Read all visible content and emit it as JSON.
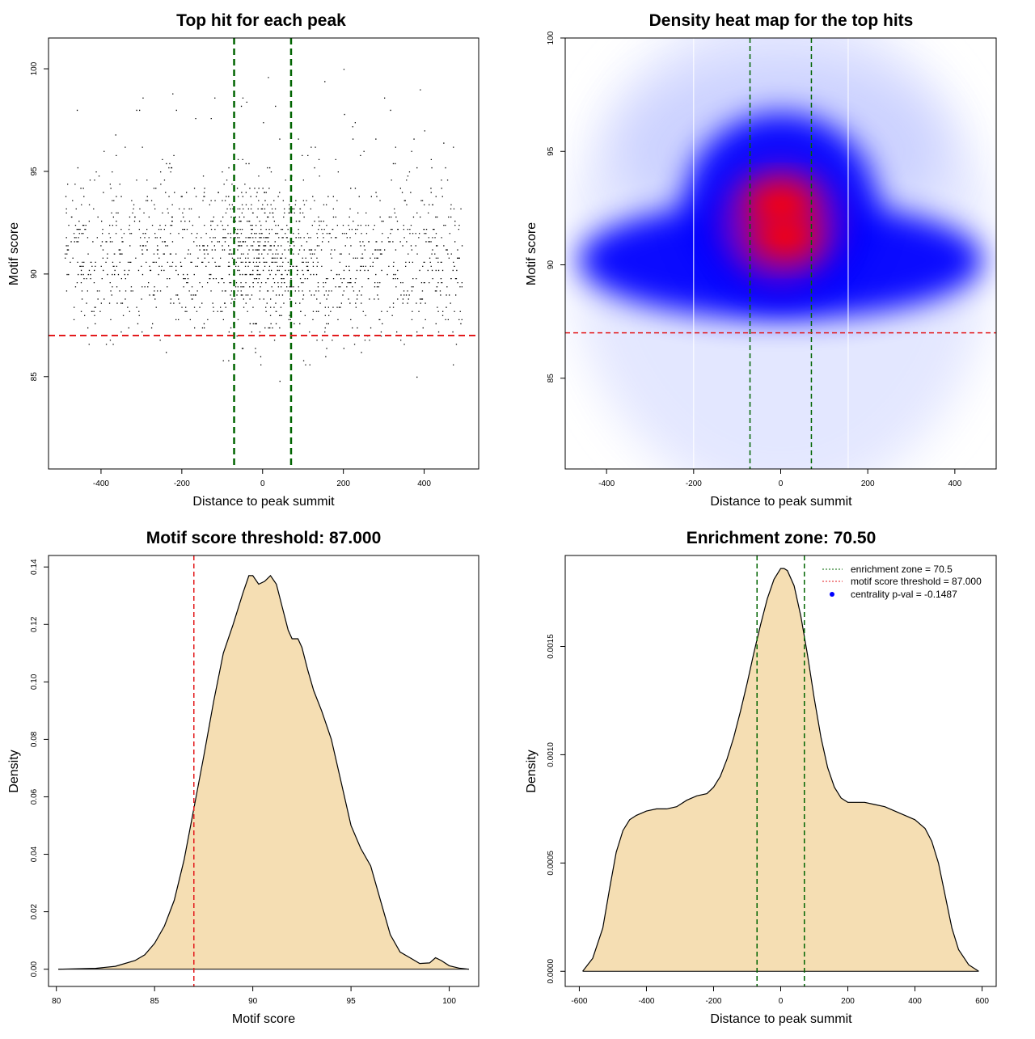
{
  "chart_data": [
    {
      "type": "scatter",
      "title": "Top hit for each peak",
      "xlabel": "Distance to peak summit",
      "ylabel": "Motif score",
      "xlim": [
        -530,
        535
      ],
      "ylim": [
        80.5,
        101.5
      ],
      "xticks": [
        -400,
        -200,
        0,
        200,
        400
      ],
      "xtick_labels": [
        "-400",
        "-200",
        "0",
        "200",
        "400"
      ],
      "yticks": [
        85,
        90,
        95,
        100
      ],
      "ytick_labels": [
        "85",
        "90",
        "95",
        "100"
      ],
      "point_distribution": {
        "x_range": [
          -490,
          495
        ],
        "y_range": [
          81,
          100
        ],
        "y_mode": 91,
        "x_mode": 0,
        "approx_points": 9000
      },
      "vlines": [
        {
          "x": -70.5,
          "color": "#006400",
          "style": "dashed"
        },
        {
          "x": 70.5,
          "color": "#006400",
          "style": "dashed"
        }
      ],
      "hlines": [
        {
          "y": 87,
          "color": "#e31a1c",
          "style": "dashed"
        }
      ],
      "grid": false
    },
    {
      "type": "heatmap",
      "title": "Density heat map for the top hits",
      "xlabel": "Distance to peak summit",
      "ylabel": "Motif score",
      "xlim": [
        -495,
        495
      ],
      "ylim": [
        81,
        100
      ],
      "xticks": [
        -400,
        -200,
        0,
        200,
        400
      ],
      "xtick_labels": [
        "-400",
        "-200",
        "0",
        "200",
        "400"
      ],
      "yticks": [
        85,
        90,
        95,
        100
      ],
      "ytick_labels": [
        "85",
        "90",
        "95",
        "100"
      ],
      "color_scale": [
        "#ffffff",
        "#0000ff",
        "#ff0000"
      ],
      "density_peaks": [
        {
          "x": 0,
          "y": 92.7,
          "level": "high"
        },
        {
          "x": 10,
          "y": 91.2,
          "level": "high"
        },
        {
          "x": 0,
          "y": 91,
          "level": "medium"
        },
        {
          "x": -300,
          "y": 90.5,
          "level": "medium"
        },
        {
          "x": 300,
          "y": 90,
          "level": "medium"
        }
      ],
      "vlines": [
        {
          "x": -70.5,
          "color": "#006400",
          "style": "dashed"
        },
        {
          "x": 70.5,
          "color": "#006400",
          "style": "dashed"
        },
        {
          "x": -200,
          "color": "#ffffff",
          "style": "solid"
        },
        {
          "x": 155,
          "color": "#ffffff",
          "style": "solid"
        }
      ],
      "hlines": [
        {
          "y": 87,
          "color": "#e31a1c",
          "style": "dashed"
        }
      ],
      "grid": false
    },
    {
      "type": "area",
      "title": "Motif score threshold: 87.000",
      "xlabel": "Motif score",
      "ylabel": "Density",
      "xlim": [
        79.6,
        101.5
      ],
      "ylim": [
        -0.006,
        0.144
      ],
      "xticks": [
        80,
        85,
        90,
        95,
        100
      ],
      "xtick_labels": [
        "80",
        "85",
        "90",
        "95",
        "100"
      ],
      "yticks": [
        0,
        0.02,
        0.04,
        0.06,
        0.08,
        0.1,
        0.12,
        0.14
      ],
      "ytick_labels": [
        "0.00",
        "0.02",
        "0.04",
        "0.06",
        "0.08",
        "0.10",
        "0.12",
        "0.14"
      ],
      "x": [
        80.1,
        82,
        83,
        84,
        84.5,
        85,
        85.5,
        86,
        86.5,
        87,
        87.5,
        88,
        88.5,
        89,
        89.5,
        89.8,
        90,
        90.3,
        90.6,
        90.9,
        91.2,
        91.5,
        91.8,
        92,
        92.3,
        92.5,
        92.8,
        93.1,
        93.5,
        94,
        94.5,
        95,
        95.5,
        96,
        96.5,
        97,
        97.5,
        98,
        98.5,
        99,
        99.3,
        99.6,
        100,
        100.5,
        101
      ],
      "y": [
        0.0,
        0.0003,
        0.001,
        0.003,
        0.005,
        0.009,
        0.015,
        0.024,
        0.038,
        0.056,
        0.074,
        0.093,
        0.11,
        0.12,
        0.131,
        0.137,
        0.137,
        0.134,
        0.135,
        0.137,
        0.134,
        0.126,
        0.118,
        0.115,
        0.115,
        0.112,
        0.104,
        0.097,
        0.09,
        0.08,
        0.065,
        0.05,
        0.042,
        0.036,
        0.024,
        0.012,
        0.006,
        0.004,
        0.002,
        0.0022,
        0.004,
        0.003,
        0.0012,
        0.0004,
        0.0
      ],
      "fill": "#f5deb3",
      "vlines": [
        {
          "x": 87,
          "color": "#e31a1c",
          "style": "dashed"
        }
      ],
      "grid": false
    },
    {
      "type": "area",
      "title": "Enrichment zone: 70.50",
      "xlabel": "Distance to peak summit",
      "ylabel": "Density",
      "xlim": [
        -642,
        642
      ],
      "ylim": [
        -7e-05,
        0.00192
      ],
      "xticks": [
        -600,
        -400,
        -200,
        0,
        200,
        400,
        600
      ],
      "xtick_labels": [
        "-600",
        "-400",
        "-200",
        "0",
        "200",
        "400",
        "600"
      ],
      "yticks": [
        0,
        0.0005,
        0.001,
        0.0015
      ],
      "ytick_labels": [
        "0.0000",
        "0.0005",
        "0.0010",
        "0.0015"
      ],
      "x": [
        -590,
        -560,
        -530,
        -510,
        -490,
        -470,
        -450,
        -430,
        -400,
        -370,
        -340,
        -310,
        -280,
        -250,
        -220,
        -200,
        -180,
        -160,
        -140,
        -120,
        -100,
        -80,
        -60,
        -40,
        -20,
        0,
        10,
        20,
        40,
        60,
        80,
        100,
        120,
        140,
        160,
        180,
        200,
        220,
        250,
        280,
        310,
        340,
        370,
        400,
        430,
        450,
        470,
        490,
        510,
        530,
        560,
        590
      ],
      "y": [
        0.0,
        6e-05,
        0.0002,
        0.00038,
        0.00055,
        0.00065,
        0.0007,
        0.00072,
        0.00074,
        0.00075,
        0.00075,
        0.00076,
        0.00079,
        0.00081,
        0.00082,
        0.00085,
        0.0009,
        0.00098,
        0.00108,
        0.0012,
        0.00133,
        0.00147,
        0.0016,
        0.00172,
        0.00181,
        0.00186,
        0.00186,
        0.00185,
        0.00178,
        0.00164,
        0.00146,
        0.00126,
        0.00108,
        0.00094,
        0.00085,
        0.0008,
        0.00078,
        0.00078,
        0.00078,
        0.00077,
        0.00076,
        0.00074,
        0.00072,
        0.0007,
        0.00066,
        0.0006,
        0.0005,
        0.00035,
        0.0002,
        0.0001,
        3e-05,
        0.0
      ],
      "fill": "#f5deb3",
      "vlines": [
        {
          "x": -70.5,
          "color": "#006400",
          "style": "dashed"
        },
        {
          "x": 70.5,
          "color": "#006400",
          "style": "dashed"
        }
      ],
      "legend": {
        "position": "top-right",
        "entries": [
          {
            "label": "enrichment zone = 70.5",
            "color": "#006400",
            "marker": "dotted-line"
          },
          {
            "label": "motif score threshold = 87.000",
            "color": "#e31a1c",
            "marker": "dotted-line"
          },
          {
            "label": "centrality p-val = -0.1487",
            "color": "#0000ff",
            "marker": "dot"
          }
        ]
      },
      "grid": false
    }
  ]
}
